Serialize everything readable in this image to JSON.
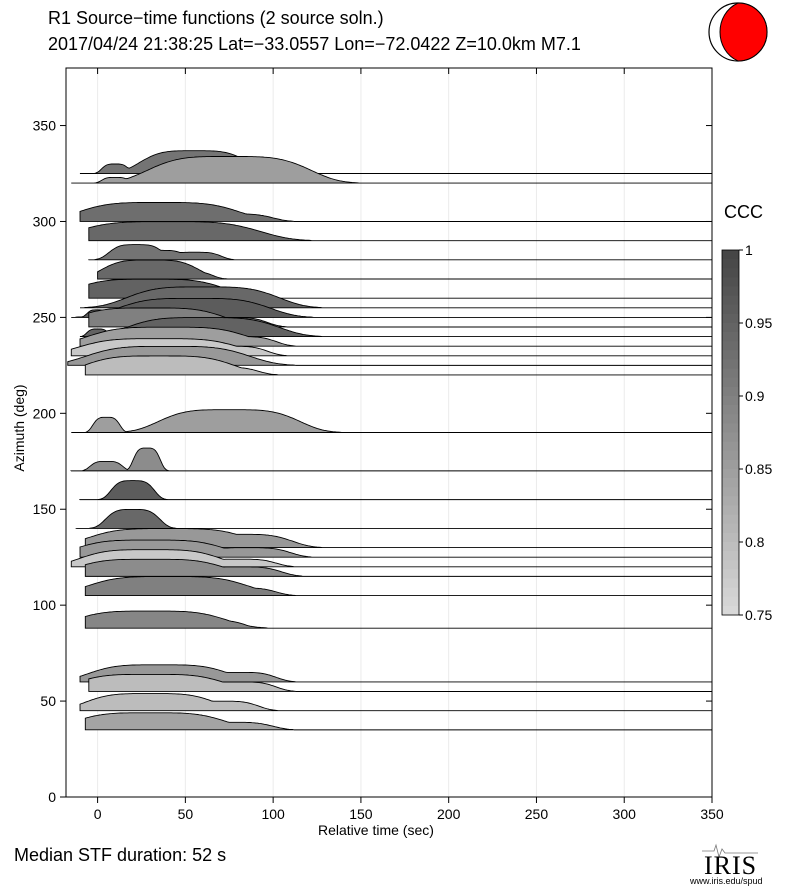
{
  "header": {
    "title": "R1 Source−time functions (2 source soln.)",
    "subtitle": "2017/04/24 21:38:25  Lat=−33.0557 Lon=−72.0422  Z=10.0km  M7.1"
  },
  "footer": {
    "median": "Median STF duration: 52 s",
    "logo_text": "IRIS",
    "logo_url": "www.iris.edu/spud"
  },
  "colorbar": {
    "title": "CCC",
    "ticks": [
      "1",
      "0.95",
      "0.9",
      "0.85",
      "0.8",
      "0.75"
    ],
    "range": [
      0.75,
      1
    ]
  },
  "chart_data": {
    "type": "area",
    "xlabel": "Relative time (sec)",
    "ylabel": "Azimuth (deg)",
    "xlim": [
      -18,
      350
    ],
    "ylim": [
      0,
      380
    ],
    "xticks": [
      "0",
      "50",
      "100",
      "150",
      "200",
      "250",
      "300",
      "350"
    ],
    "yticks": [
      "0",
      "50",
      "100",
      "150",
      "200",
      "250",
      "300",
      "350"
    ],
    "grid": "vertical",
    "traces": [
      {
        "azimuth": 35,
        "ccc": 0.84,
        "start": -7,
        "peaks": [
          [
            30,
            9,
            28
          ],
          [
            75,
            4,
            16
          ]
        ]
      },
      {
        "azimuth": 45,
        "ccc": 0.8,
        "start": -10,
        "peaks": [
          [
            30,
            9,
            24
          ],
          [
            70,
            5,
            14
          ]
        ]
      },
      {
        "azimuth": 55,
        "ccc": 0.8,
        "start": -5,
        "peaks": [
          [
            30,
            9,
            28
          ],
          [
            80,
            5,
            14
          ]
        ]
      },
      {
        "azimuth": 60,
        "ccc": 0.86,
        "start": -10,
        "peaks": [
          [
            35,
            9,
            26
          ],
          [
            80,
            5,
            14
          ]
        ]
      },
      {
        "azimuth": 88,
        "ccc": 0.89,
        "start": -7,
        "peaks": [
          [
            30,
            9,
            28
          ],
          [
            65,
            4,
            12
          ]
        ]
      },
      {
        "azimuth": 105,
        "ccc": 0.9,
        "start": -7,
        "peaks": [
          [
            40,
            10,
            30
          ],
          [
            80,
            4,
            14
          ]
        ]
      },
      {
        "azimuth": 115,
        "ccc": 0.88,
        "start": -7,
        "peaks": [
          [
            30,
            9,
            28
          ],
          [
            80,
            5,
            16
          ]
        ]
      },
      {
        "azimuth": 120,
        "ccc": 0.78,
        "start": -15,
        "peaks": [
          [
            30,
            9,
            26
          ],
          [
            80,
            4,
            14
          ]
        ]
      },
      {
        "azimuth": 125,
        "ccc": 0.86,
        "start": -10,
        "peaks": [
          [
            30,
            9,
            28
          ],
          [
            85,
            5,
            16
          ]
        ]
      },
      {
        "azimuth": 130,
        "ccc": 0.86,
        "start": -7,
        "peaks": [
          [
            40,
            10,
            30
          ],
          [
            80,
            7,
            20
          ]
        ]
      },
      {
        "azimuth": 140,
        "ccc": 0.94,
        "start": -12,
        "peaks": [
          [
            20,
            10,
            10
          ]
        ]
      },
      {
        "azimuth": 155,
        "ccc": 0.96,
        "start": -10,
        "peaks": [
          [
            20,
            10,
            8
          ]
        ]
      },
      {
        "azimuth": 170,
        "ccc": 0.88,
        "start": -15,
        "peaks": [
          [
            5,
            5,
            6
          ],
          [
            28,
            12,
            5
          ]
        ]
      },
      {
        "azimuth": 190,
        "ccc": 0.85,
        "start": -15,
        "peaks": [
          [
            5,
            8,
            5
          ],
          [
            75,
            12,
            26
          ]
        ]
      },
      {
        "azimuth": 220,
        "ccc": 0.8,
        "start": -7,
        "peaks": [
          [
            35,
            10,
            28
          ],
          [
            70,
            4,
            14
          ]
        ]
      },
      {
        "azimuth": 225,
        "ccc": 0.86,
        "start": -17,
        "peaks": [
          [
            0,
            4,
            4
          ],
          [
            40,
            10,
            30
          ],
          [
            70,
            5,
            14
          ]
        ]
      },
      {
        "azimuth": 230,
        "ccc": 0.78,
        "start": -15,
        "peaks": [
          [
            0,
            4,
            4
          ],
          [
            35,
            9,
            30
          ],
          [
            75,
            5,
            14
          ]
        ]
      },
      {
        "azimuth": 235,
        "ccc": 0.85,
        "start": -10,
        "peaks": [
          [
            40,
            10,
            30
          ],
          [
            80,
            5,
            14
          ]
        ]
      },
      {
        "azimuth": 240,
        "ccc": 0.95,
        "start": -10,
        "peaks": [
          [
            0,
            4,
            4
          ],
          [
            60,
            10,
            28
          ]
        ]
      },
      {
        "azimuth": 245,
        "ccc": 0.9,
        "start": -5,
        "peaks": [
          [
            30,
            10,
            28
          ],
          [
            75,
            5,
            14
          ]
        ]
      },
      {
        "azimuth": 250,
        "ccc": 0.96,
        "start": -15,
        "peaks": [
          [
            0,
            4,
            4
          ],
          [
            55,
            10,
            28
          ]
        ]
      },
      {
        "azimuth": 255,
        "ccc": 0.94,
        "start": -10,
        "peaks": [
          [
            60,
            11,
            28
          ],
          [
            80,
            4,
            12
          ]
        ]
      },
      {
        "azimuth": 260,
        "ccc": 0.95,
        "start": -5,
        "peaks": [
          [
            30,
            10,
            28
          ],
          [
            70,
            5,
            14
          ]
        ]
      },
      {
        "azimuth": 270,
        "ccc": 0.94,
        "start": 0,
        "peaks": [
          [
            30,
            10,
            18
          ],
          [
            50,
            4,
            10
          ]
        ]
      },
      {
        "azimuth": 280,
        "ccc": 0.92,
        "start": -5,
        "peaks": [
          [
            22,
            8,
            10
          ],
          [
            35,
            5,
            10
          ],
          [
            55,
            4,
            10
          ]
        ]
      },
      {
        "azimuth": 290,
        "ccc": 0.94,
        "start": -5,
        "peaks": [
          [
            40,
            10,
            34
          ],
          [
            70,
            4,
            14
          ]
        ]
      },
      {
        "azimuth": 300,
        "ccc": 0.93,
        "start": -10,
        "peaks": [
          [
            35,
            10,
            30
          ],
          [
            75,
            4,
            16
          ]
        ]
      },
      {
        "azimuth": 320,
        "ccc": 0.85,
        "start": -15,
        "peaks": [
          [
            10,
            3,
            5
          ],
          [
            75,
            14,
            30
          ]
        ]
      },
      {
        "azimuth": 325,
        "ccc": 0.92,
        "start": -10,
        "peaks": [
          [
            10,
            5,
            5
          ],
          [
            55,
            12,
            20
          ]
        ]
      }
    ]
  }
}
